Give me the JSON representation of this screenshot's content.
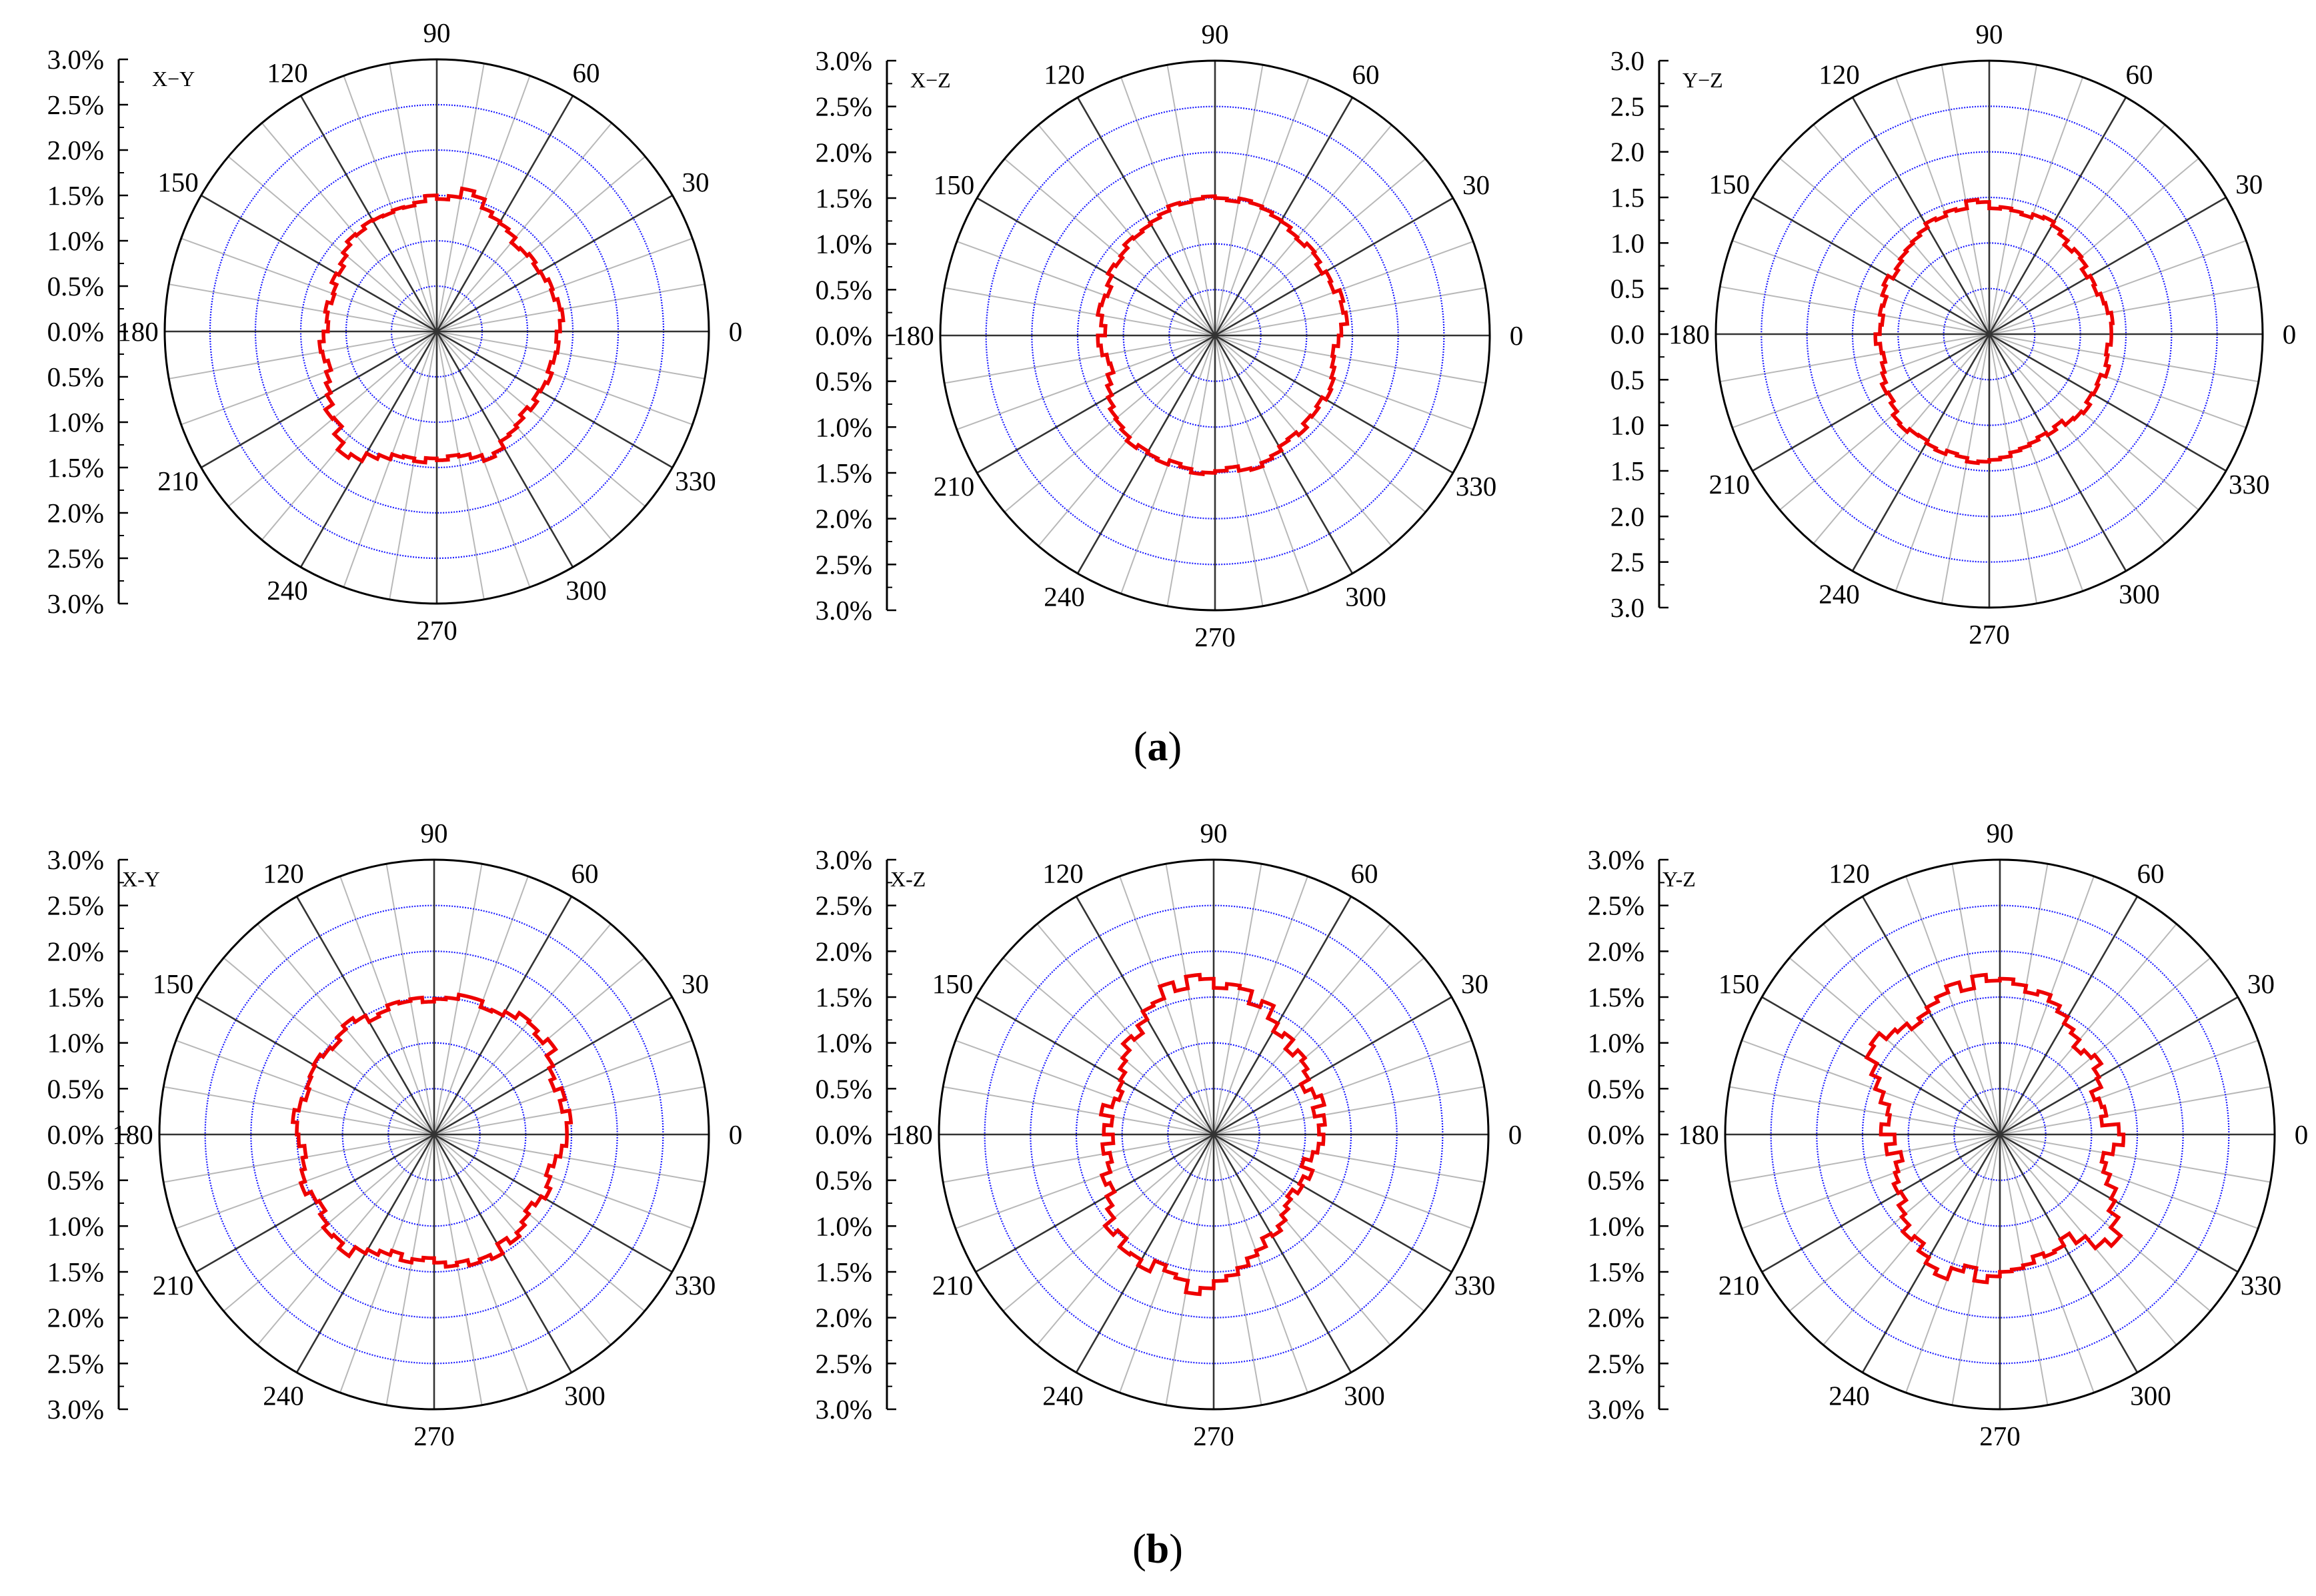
{
  "colors": {
    "series": "#ee0000",
    "grid_circle": "#1a1aff",
    "spoke_major": "#333333",
    "spoke_minor": "#b8b8b8",
    "outer": "#000000",
    "axis": "#000000"
  },
  "figure": {
    "row_labels": [
      {
        "open": "(",
        "letter": "a",
        "close": ")"
      },
      {
        "open": "(",
        "letter": "b",
        "close": ")"
      }
    ]
  },
  "chart_data": [
    {
      "type": "polar-step",
      "row": "a",
      "col": 0,
      "plane": "X−Y",
      "r_ticks": [
        "3.0%",
        "2.5%",
        "2.0%",
        "1.5%",
        "1.0%",
        "0.5%",
        "0.0%",
        "0.5%",
        "1.0%",
        "1.5%",
        "2.0%",
        "2.5%",
        "3.0%"
      ],
      "rmax": 3.0,
      "grid_rings": [
        0.5,
        1.0,
        1.5,
        2.0,
        2.5
      ],
      "angle_labels": [
        "0",
        "30",
        "60",
        "90",
        "120",
        "150",
        "180",
        "210",
        "240",
        "270",
        "300",
        "330"
      ],
      "bin_deg": 5,
      "values": [
        1.36,
        1.4,
        1.38,
        1.34,
        1.36,
        1.32,
        1.3,
        1.33,
        1.3,
        1.28,
        1.35,
        1.38,
        1.4,
        1.45,
        1.55,
        1.6,
        1.5,
        1.46,
        1.5,
        1.44,
        1.41,
        1.42,
        1.4,
        1.41,
        1.42,
        1.38,
        1.4,
        1.35,
        1.3,
        1.25,
        1.28,
        1.22,
        1.2,
        1.25,
        1.22,
        1.2,
        1.25,
        1.3,
        1.28,
        1.24,
        1.3,
        1.35,
        1.4,
        1.5,
        1.48,
        1.6,
        1.7,
        1.65,
        1.55,
        1.5,
        1.44,
        1.42,
        1.45,
        1.4,
        1.42,
        1.38,
        1.4,
        1.45,
        1.52,
        1.48,
        1.4,
        1.38,
        1.35,
        1.3,
        1.35,
        1.3,
        1.32,
        1.35,
        1.3,
        1.33,
        1.35,
        1.32
      ]
    },
    {
      "type": "polar-step",
      "row": "a",
      "col": 1,
      "plane": "X−Z",
      "r_ticks": [
        "3.0%",
        "2.5%",
        "2.0%",
        "1.5%",
        "1.0%",
        "0.5%",
        "0.0%",
        "0.5%",
        "1.0%",
        "1.5%",
        "2.0%",
        "2.5%",
        "3.0%"
      ],
      "rmax": 3.0,
      "grid_rings": [
        0.5,
        1.0,
        1.5,
        2.0,
        2.5
      ],
      "angle_labels": [
        "0",
        "30",
        "60",
        "90",
        "120",
        "150",
        "180",
        "210",
        "240",
        "270",
        "300",
        "330"
      ],
      "bin_deg": 5,
      "values": [
        1.38,
        1.45,
        1.42,
        1.45,
        1.38,
        1.4,
        1.35,
        1.4,
        1.42,
        1.38,
        1.4,
        1.44,
        1.45,
        1.48,
        1.5,
        1.52,
        1.48,
        1.5,
        1.52,
        1.5,
        1.48,
        1.5,
        1.45,
        1.42,
        1.4,
        1.38,
        1.4,
        1.35,
        1.32,
        1.35,
        1.3,
        1.25,
        1.28,
        1.3,
        1.25,
        1.2,
        1.28,
        1.25,
        1.2,
        1.18,
        1.25,
        1.3,
        1.35,
        1.4,
        1.42,
        1.45,
        1.5,
        1.46,
        1.48,
        1.5,
        1.45,
        1.48,
        1.52,
        1.5,
        1.48,
        1.45,
        1.5,
        1.52,
        1.48,
        1.45,
        1.4,
        1.38,
        1.42,
        1.36,
        1.38,
        1.35,
        1.4,
        1.38,
        1.35,
        1.32,
        1.3,
        1.35
      ]
    },
    {
      "type": "polar-step",
      "row": "a",
      "col": 2,
      "plane": "Y−Z",
      "r_ticks": [
        "3.0",
        "2.5",
        "2.0",
        "1.5",
        "1.0",
        "0.5",
        "0.0",
        "0.5",
        "1.0",
        "1.5",
        "2.0",
        "2.5",
        "3.0"
      ],
      "rmax": 3.0,
      "grid_rings": [
        0.5,
        1.0,
        1.5,
        2.0,
        2.5
      ],
      "angle_labels": [
        "0",
        "30",
        "60",
        "90",
        "120",
        "150",
        "180",
        "210",
        "240",
        "270",
        "300",
        "330"
      ],
      "bin_deg": 5,
      "values": [
        1.34,
        1.36,
        1.32,
        1.3,
        1.26,
        1.28,
        1.24,
        1.3,
        1.32,
        1.28,
        1.34,
        1.38,
        1.42,
        1.4,
        1.36,
        1.38,
        1.4,
        1.38,
        1.45,
        1.48,
        1.4,
        1.42,
        1.38,
        1.4,
        1.35,
        1.32,
        1.3,
        1.28,
        1.25,
        1.22,
        1.28,
        1.25,
        1.2,
        1.22,
        1.18,
        1.2,
        1.25,
        1.2,
        1.18,
        1.22,
        1.25,
        1.3,
        1.28,
        1.32,
        1.38,
        1.4,
        1.36,
        1.35,
        1.38,
        1.4,
        1.36,
        1.38,
        1.42,
        1.4,
        1.38,
        1.36,
        1.32,
        1.3,
        1.28,
        1.25,
        1.28,
        1.24,
        1.3,
        1.32,
        1.35,
        1.3,
        1.32,
        1.3,
        1.36,
        1.32,
        1.3,
        1.34
      ]
    },
    {
      "type": "polar-step",
      "row": "b",
      "col": 0,
      "plane": "X-Y",
      "r_ticks": [
        "3.0%",
        "2.5%",
        "2.0%",
        "1.5%",
        "1.0%",
        "0.5%",
        "0.0%",
        "0.5%",
        "1.0%",
        "1.5%",
        "2.0%",
        "2.5%",
        "3.0%"
      ],
      "rmax": 3.0,
      "grid_rings": [
        0.5,
        1.0,
        1.5,
        2.0,
        2.5
      ],
      "angle_labels": [
        "0",
        "30",
        "60",
        "90",
        "120",
        "150",
        "180",
        "210",
        "240",
        "270",
        "300",
        "330"
      ],
      "bin_deg": 5,
      "values": [
        1.45,
        1.5,
        1.42,
        1.48,
        1.4,
        1.45,
        1.5,
        1.62,
        1.55,
        1.6,
        1.62,
        1.55,
        1.5,
        1.48,
        1.55,
        1.55,
        1.5,
        1.48,
        1.45,
        1.5,
        1.48,
        1.5,
        1.45,
        1.42,
        1.5,
        1.55,
        1.5,
        1.45,
        1.48,
        1.52,
        1.5,
        1.48,
        1.45,
        1.5,
        1.55,
        1.5,
        1.48,
        1.42,
        1.46,
        1.5,
        1.55,
        1.48,
        1.45,
        1.52,
        1.58,
        1.55,
        1.62,
        1.5,
        1.45,
        1.4,
        1.35,
        1.42,
        1.38,
        1.35,
        1.4,
        1.45,
        1.42,
        1.48,
        1.45,
        1.5,
        1.38,
        1.45,
        1.4,
        1.35,
        1.3,
        1.35,
        1.4,
        1.35,
        1.3,
        1.35,
        1.4,
        1.45
      ]
    },
    {
      "type": "polar-step",
      "row": "b",
      "col": 1,
      "plane": "X-Z",
      "r_ticks": [
        "3.0%",
        "2.5%",
        "2.0%",
        "1.5%",
        "1.0%",
        "0.5%",
        "0.0%",
        "0.5%",
        "1.0%",
        "1.5%",
        "2.0%",
        "2.5%",
        "3.0%"
      ],
      "rmax": 3.0,
      "grid_rings": [
        0.5,
        1.0,
        1.5,
        2.0,
        2.5
      ],
      "angle_labels": [
        "0",
        "30",
        "60",
        "90",
        "120",
        "150",
        "180",
        "210",
        "240",
        "270",
        "300",
        "330"
      ],
      "bin_deg": 5,
      "values": [
        1.15,
        1.22,
        1.12,
        1.25,
        1.18,
        1.1,
        1.2,
        1.25,
        1.3,
        1.22,
        1.35,
        1.3,
        1.4,
        1.55,
        1.48,
        1.62,
        1.65,
        1.6,
        1.7,
        1.75,
        1.62,
        1.72,
        1.58,
        1.55,
        1.45,
        1.35,
        1.4,
        1.3,
        1.25,
        1.18,
        1.15,
        1.1,
        1.15,
        1.25,
        1.12,
        1.2,
        1.1,
        1.22,
        1.15,
        1.2,
        1.3,
        1.25,
        1.35,
        1.42,
        1.55,
        1.48,
        1.6,
        1.58,
        1.65,
        1.52,
        1.58,
        1.62,
        1.75,
        1.68,
        1.6,
        1.55,
        1.48,
        1.4,
        1.35,
        1.25,
        1.28,
        1.22,
        1.15,
        1.1,
        1.05,
        1.12,
        1.08,
        1.15,
        1.02,
        1.1,
        1.15,
        1.2
      ]
    },
    {
      "type": "polar-step",
      "row": "b",
      "col": 2,
      "plane": "Y-Z",
      "r_ticks": [
        "3.0%",
        "2.5%",
        "2.0%",
        "1.5%",
        "1.0%",
        "0.5%",
        "0.0%",
        "0.5%",
        "1.0%",
        "1.5%",
        "2.0%",
        "2.5%",
        "3.0%"
      ],
      "rmax": 3.0,
      "grid_rings": [
        0.5,
        1.0,
        1.5,
        2.0,
        2.5
      ],
      "angle_labels": [
        "0",
        "30",
        "60",
        "90",
        "120",
        "150",
        "180",
        "210",
        "240",
        "270",
        "300",
        "330"
      ],
      "bin_deg": 5,
      "values": [
        1.3,
        1.12,
        1.18,
        1.15,
        1.1,
        1.22,
        1.25,
        1.35,
        1.3,
        1.25,
        1.35,
        1.4,
        1.48,
        1.55,
        1.62,
        1.58,
        1.65,
        1.7,
        1.68,
        1.75,
        1.62,
        1.72,
        1.65,
        1.6,
        1.55,
        1.5,
        1.58,
        1.62,
        1.72,
        1.68,
        1.55,
        1.45,
        1.35,
        1.25,
        1.22,
        1.3,
        1.15,
        1.25,
        1.1,
        1.18,
        1.22,
        1.28,
        1.25,
        1.35,
        1.4,
        1.5,
        1.45,
        1.55,
        1.62,
        1.68,
        1.55,
        1.48,
        1.62,
        1.55,
        1.5,
        1.48,
        1.45,
        1.38,
        1.42,
        1.4,
        1.32,
        1.45,
        1.62,
        1.72,
        1.58,
        1.45,
        1.4,
        1.28,
        1.2,
        1.15,
        1.25,
        1.35
      ]
    }
  ]
}
